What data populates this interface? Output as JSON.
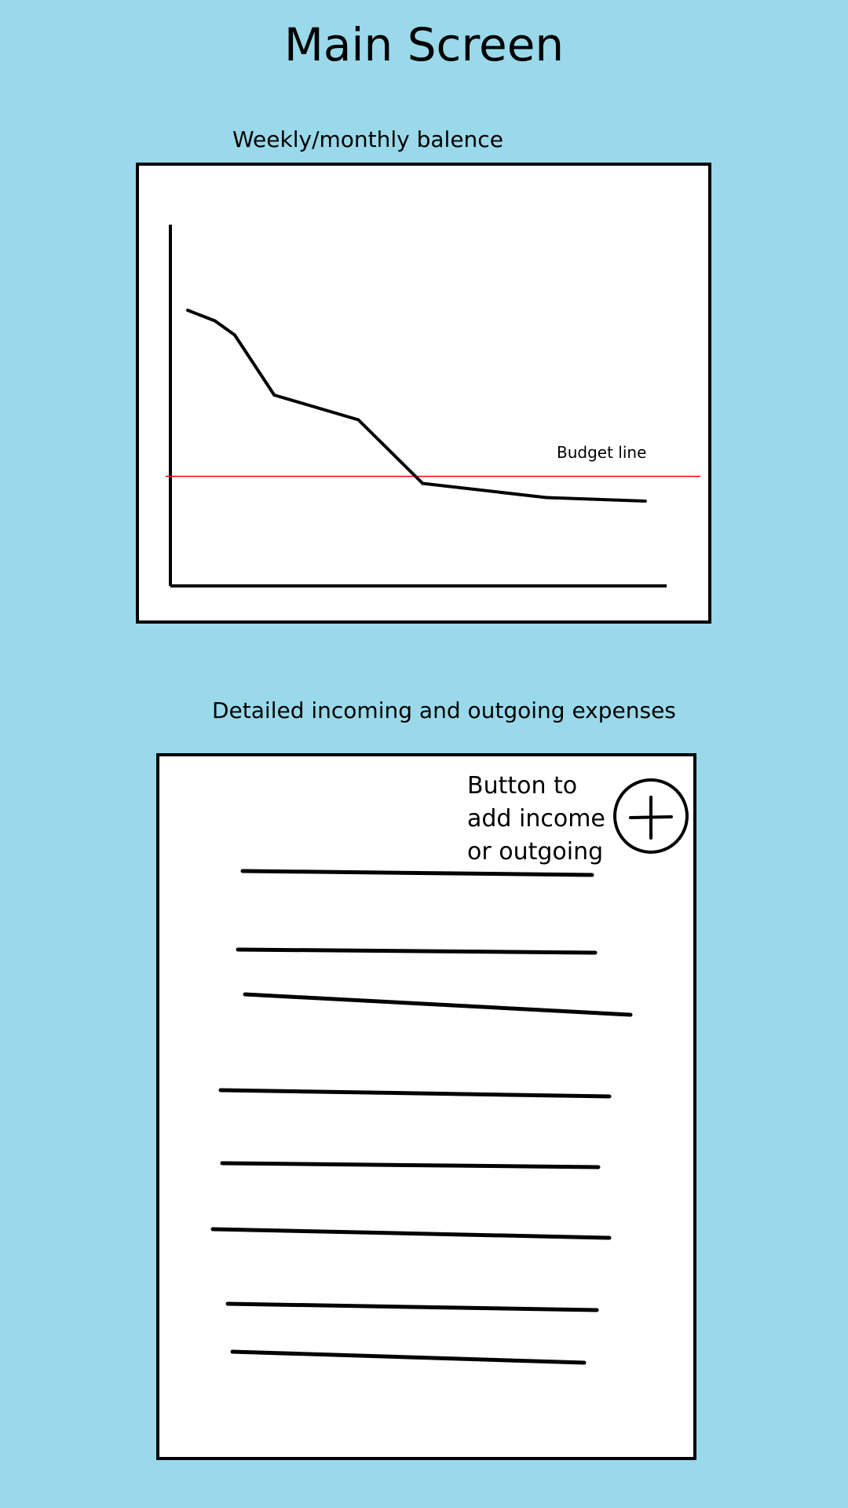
{
  "title": "Main Screen",
  "balance_section": {
    "label": "Weekly/monthly balence",
    "budget_label": "Budget line",
    "budget_color": "#ff0000"
  },
  "transactions_section": {
    "label": "Detailed incoming and outgoing expenses",
    "add_button": {
      "lines": [
        "Button to",
        "add income",
        "or outgoing"
      ],
      "icon": "plus-icon"
    },
    "entries_count_shown": 8
  },
  "chart_data": {
    "type": "line",
    "title": "",
    "xlabel": "",
    "ylabel": "",
    "xlim": [
      0,
      10
    ],
    "ylim": [
      0,
      10
    ],
    "series": [
      {
        "x": [
          0.35,
          0.9,
          1.3,
          2.1,
          3.8,
          5.1,
          7.6,
          9.6
        ],
        "y": [
          7.8,
          7.5,
          7.1,
          5.4,
          4.7,
          2.9,
          2.5,
          2.4
        ]
      }
    ],
    "reference_lines": [
      {
        "label": "Budget line",
        "y": 3.1,
        "color": "#ff0000"
      }
    ],
    "grid": false
  }
}
